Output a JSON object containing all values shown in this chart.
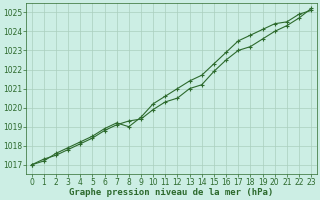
{
  "xlabel": "Graphe pression niveau de la mer (hPa)",
  "xlim": [
    -0.5,
    23.5
  ],
  "ylim": [
    1016.5,
    1025.5
  ],
  "yticks": [
    1017,
    1018,
    1019,
    1020,
    1021,
    1022,
    1023,
    1024,
    1025
  ],
  "xticks": [
    0,
    1,
    2,
    3,
    4,
    5,
    6,
    7,
    8,
    9,
    10,
    11,
    12,
    13,
    14,
    15,
    16,
    17,
    18,
    19,
    20,
    21,
    22,
    23
  ],
  "line1_x": [
    0,
    1,
    2,
    3,
    4,
    5,
    6,
    7,
    8,
    9,
    10,
    11,
    12,
    13,
    14,
    15,
    16,
    17,
    18,
    19,
    20,
    21,
    22,
    23
  ],
  "line1_y": [
    1017.0,
    1017.3,
    1017.5,
    1017.8,
    1018.1,
    1018.4,
    1018.8,
    1019.1,
    1019.3,
    1019.4,
    1019.9,
    1020.3,
    1020.5,
    1021.0,
    1021.2,
    1021.9,
    1022.5,
    1023.0,
    1023.2,
    1023.6,
    1024.0,
    1024.3,
    1024.7,
    1025.2
  ],
  "line2_x": [
    0,
    1,
    2,
    3,
    4,
    5,
    6,
    7,
    8,
    9,
    10,
    11,
    12,
    13,
    14,
    15,
    16,
    17,
    18,
    19,
    20,
    21,
    22,
    23
  ],
  "line2_y": [
    1017.0,
    1017.2,
    1017.6,
    1017.9,
    1018.2,
    1018.5,
    1018.9,
    1019.2,
    1019.0,
    1019.5,
    1020.2,
    1020.6,
    1021.0,
    1021.4,
    1021.7,
    1022.3,
    1022.9,
    1023.5,
    1023.8,
    1024.1,
    1024.4,
    1024.5,
    1024.9,
    1025.1
  ],
  "line_color": "#2d6a2d",
  "bg_color": "#cceee4",
  "grid_color": "#aacfbe",
  "tick_label_color": "#2d6a2d",
  "xlabel_color": "#2d6a2d",
  "border_color": "#2d6a2d",
  "markersize": 2.5,
  "linewidth": 0.8,
  "xlabel_fontsize": 6.5,
  "tick_fontsize": 5.5
}
